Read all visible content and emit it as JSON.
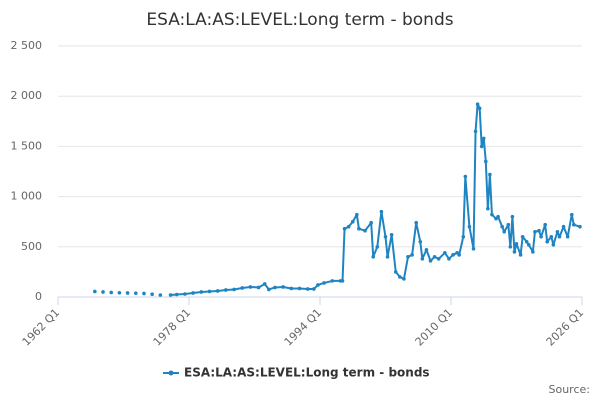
{
  "chart_data": {
    "type": "line",
    "title": "ESA:LA:AS:LEVEL:Long term - bonds",
    "source": "Source:",
    "x": [
      1966.5,
      1967,
      1967.5,
      1968,
      1968.5,
      1969,
      1969.5,
      1970,
      1970.5,
      1971,
      1971.5,
      1972,
      1972.5,
      1973,
      1973.5,
      1974,
      1974.5,
      1975,
      1975.75,
      1976.5,
      1977.5,
      1978.5,
      1979.5,
      1980.5,
      1981.5,
      1982.5,
      1983.5,
      1984.5,
      1985.5,
      1986.5,
      1987.25,
      1987.75,
      1988.5,
      1989.5,
      1990.5,
      1991.5,
      1992.5,
      1993.25,
      1993.75,
      1994.5,
      1995.5,
      1996.5,
      1996.75,
      1997,
      1997.5,
      1998,
      1998.5,
      1998.75,
      1999.5,
      2000.25,
      2000.5,
      2001,
      2001.5,
      2002,
      2002.25,
      2002.75,
      2003.25,
      2003.75,
      2004.25,
      2004.75,
      2005.25,
      2005.75,
      2006.25,
      2006.5,
      2007,
      2007.5,
      2008,
      2008.5,
      2009.25,
      2009.75,
      2010.25,
      2010.75,
      2011,
      2011.5,
      2011.75,
      2012.25,
      2012.75,
      2013,
      2013.25,
      2013.5,
      2013.75,
      2014,
      2014.25,
      2014.5,
      2014.75,
      2015,
      2015.5,
      2015.75,
      2016.25,
      2016.5,
      2017,
      2017.25,
      2017.5,
      2017.75,
      2018,
      2018.5,
      2018.75,
      2019.25,
      2019.5,
      2020,
      2020.25,
      2020.75,
      2021,
      2021.5,
      2021.75,
      2022.25,
      2022.5,
      2023,
      2023.25,
      2023.75,
      2024.25,
      2024.75,
      2025,
      2025.75
    ],
    "series": [
      {
        "name": "ESA:LA:AS:LEVEL:Long term - bonds",
        "color": "#1f84c2",
        "values": [
          55,
          null,
          50,
          null,
          45,
          null,
          42,
          null,
          40,
          null,
          38,
          null,
          35,
          null,
          28,
          null,
          20,
          null,
          20,
          25,
          30,
          40,
          50,
          55,
          60,
          70,
          75,
          90,
          100,
          95,
          130,
          75,
          95,
          100,
          85,
          85,
          80,
          80,
          120,
          140,
          160,
          160,
          160,
          680,
          700,
          750,
          820,
          680,
          660,
          740,
          400,
          500,
          850,
          600,
          400,
          620,
          250,
          200,
          180,
          400,
          420,
          740,
          550,
          380,
          470,
          360,
          400,
          380,
          440,
          380,
          420,
          440,
          420,
          600,
          1200,
          700,
          480,
          1650,
          1920,
          1880,
          1500,
          1580,
          1350,
          880,
          1220,
          820,
          780,
          800,
          700,
          650,
          720,
          500,
          800,
          450,
          530,
          420,
          600,
          550,
          520,
          450,
          650,
          660,
          600,
          720,
          550,
          600,
          520,
          650,
          600,
          700,
          600,
          820,
          720,
          700
        ]
      }
    ],
    "xlim": [
      1962,
      2026
    ],
    "xticks": [
      {
        "value": 1962,
        "label": "1962 Q1"
      },
      {
        "value": 1978,
        "label": "1978 Q1"
      },
      {
        "value": 1994,
        "label": "1994 Q1"
      },
      {
        "value": 2010,
        "label": "2010 Q1"
      },
      {
        "value": 2026,
        "label": "2026 Q1"
      }
    ],
    "ylim": [
      0,
      2500
    ],
    "yticks": [
      0,
      500,
      {
        "value": 1000,
        "label": "1 000"
      },
      {
        "value": 1500,
        "label": "1 500"
      },
      {
        "value": 2000,
        "label": "2 000"
      },
      {
        "value": 2500,
        "label": "2 500"
      }
    ],
    "grid": true,
    "legend": "bottom"
  }
}
